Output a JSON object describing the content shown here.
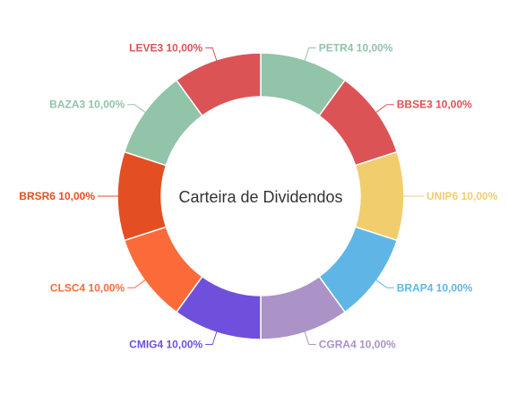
{
  "chart_data": {
    "type": "pie",
    "variant": "donut",
    "title": "Carteira de Dividendos",
    "value_unit": "%",
    "slices": [
      {
        "label": "PETR4 10,00%",
        "value": 10.0,
        "color": "#91c4a9"
      },
      {
        "label": "BBSE3 10,00%",
        "value": 10.0,
        "color": "#dc5356"
      },
      {
        "label": "UNIP6 10,00%",
        "value": 10.0,
        "color": "#f1cd6e"
      },
      {
        "label": "BRAP4 10,00%",
        "value": 10.0,
        "color": "#5fb6e6"
      },
      {
        "label": "CGRA4 10,00%",
        "value": 10.0,
        "color": "#ab93c8"
      },
      {
        "label": "CMIG4 10,00%",
        "value": 10.0,
        "color": "#6e50dc"
      },
      {
        "label": "CLSC4 10,00%",
        "value": 10.0,
        "color": "#fb6b3a"
      },
      {
        "label": "BRSR6 10,00%",
        "value": 10.0,
        "color": "#e44e23"
      },
      {
        "label": "BAZA3 10,00%",
        "value": 10.0,
        "color": "#91c4a9"
      },
      {
        "label": "LEVE3 10,00%",
        "value": 10.0,
        "color": "#dc5356"
      }
    ]
  }
}
